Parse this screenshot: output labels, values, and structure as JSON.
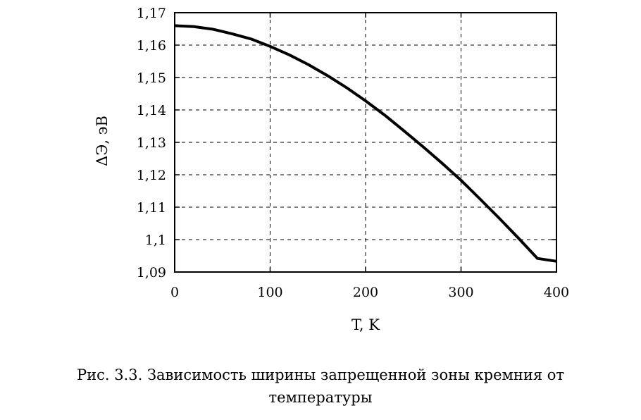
{
  "chart_data": {
    "type": "line",
    "title": "",
    "xlabel": "T, K",
    "ylabel": "ΔЭ, эВ",
    "xlim": [
      0,
      400
    ],
    "ylim": [
      1.09,
      1.17
    ],
    "x_ticks": [
      0,
      100,
      200,
      300,
      400
    ],
    "y_ticks": [
      1.09,
      1.1,
      1.11,
      1.12,
      1.13,
      1.14,
      1.15,
      1.16,
      1.17
    ],
    "x_tick_labels": [
      "0",
      "100",
      "200",
      "300",
      "400"
    ],
    "y_tick_labels": [
      "1,09",
      "1,1",
      "1,11",
      "1,12",
      "1,13",
      "1,14",
      "1,15",
      "1,16",
      "1,17"
    ],
    "grid": true,
    "series": [
      {
        "x": [
          0,
          20,
          40,
          60,
          80,
          100,
          120,
          140,
          160,
          180,
          200,
          220,
          240,
          260,
          280,
          300,
          320,
          340,
          360,
          380,
          400
        ],
        "y": [
          1.166,
          1.1657,
          1.1649,
          1.1635,
          1.1619,
          1.1596,
          1.157,
          1.154,
          1.1506,
          1.1469,
          1.1428,
          1.1384,
          1.1336,
          1.1287,
          1.1236,
          1.1183,
          1.1125,
          1.1066,
          1.1005,
          1.0942,
          1.093
        ]
      }
    ],
    "caption_line1": "Рис. 3.3. Зависимость ширины запрещенной зоны кремния от",
    "caption_line2": "температуры"
  }
}
